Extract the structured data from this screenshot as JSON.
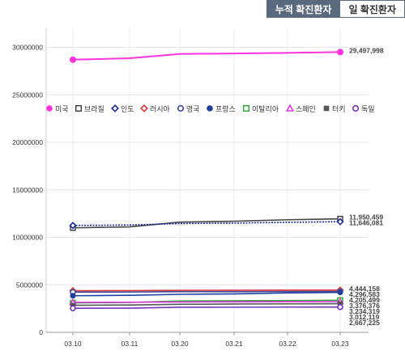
{
  "tabs": {
    "cumulative_label": "누적 확진환자",
    "daily_label": "일 확진환자"
  },
  "chart_data": {
    "type": "line",
    "x": [
      "03.10",
      "03.11",
      "03.20",
      "03.21",
      "03.22",
      "03.23"
    ],
    "ylim": [
      0,
      32000000
    ],
    "yticks": [
      0,
      5000000,
      10000000,
      15000000,
      20000000,
      25000000,
      30000000
    ],
    "grid": true,
    "legend_position": "middle-left",
    "series": [
      {
        "name": "미국",
        "marker": "filled-circle",
        "color": "#ff33dd",
        "values": [
          28700000,
          28850000,
          29300000,
          29350000,
          29420000,
          29497998
        ],
        "end_label": "29,497,998"
      },
      {
        "name": "브라질",
        "marker": "hollow-square",
        "color": "#444444",
        "values": [
          11000000,
          11100000,
          11600000,
          11700000,
          11850000,
          11950459
        ],
        "end_label": "11,950,459"
      },
      {
        "name": "인도",
        "marker": "hollow-diamond",
        "color": "#1a2a9c",
        "values": [
          11250000,
          11300000,
          11450000,
          11500000,
          11580000,
          11646081
        ],
        "end_label": "11,646,081"
      },
      {
        "name": "러시아",
        "marker": "hollow-diamond",
        "color": "#dd3333",
        "values": [
          4380000,
          4390000,
          4420000,
          4430000,
          4440000,
          4444158
        ],
        "end_label": "4,444,158"
      },
      {
        "name": "영국",
        "marker": "hollow-circle",
        "color": "#3a4a9c",
        "values": [
          4240000,
          4245000,
          4280000,
          4285000,
          4292000,
          4296583
        ],
        "end_label": "4,296,583"
      },
      {
        "name": "프랑스",
        "marker": "filled-circle",
        "color": "#1f3f9f",
        "values": [
          3850000,
          3900000,
          4000000,
          4050000,
          4150000,
          4205499
        ],
        "end_label": "4,205,499"
      },
      {
        "name": "이탈리아",
        "marker": "hollow-square",
        "color": "#33aa33",
        "values": [
          3100000,
          3150000,
          3300000,
          3330000,
          3350000,
          3376376
        ],
        "end_label": "3,376,376"
      },
      {
        "name": "스페인",
        "marker": "hollow-triangle",
        "color": "#dd33dd",
        "values": [
          3160000,
          3170000,
          3200000,
          3210000,
          3225000,
          3234319
        ],
        "end_label": "3,234,319"
      },
      {
        "name": "터키",
        "marker": "filled-square",
        "color": "#555555",
        "values": [
          2850000,
          2880000,
          2950000,
          2980000,
          3000000,
          3012119
        ],
        "end_label": "3,012,119"
      },
      {
        "name": "독일",
        "marker": "hollow-circle",
        "color": "#7733bb",
        "values": [
          2540000,
          2550000,
          2640000,
          2650000,
          2660000,
          2667225
        ],
        "end_label": "2,667,225"
      }
    ]
  }
}
